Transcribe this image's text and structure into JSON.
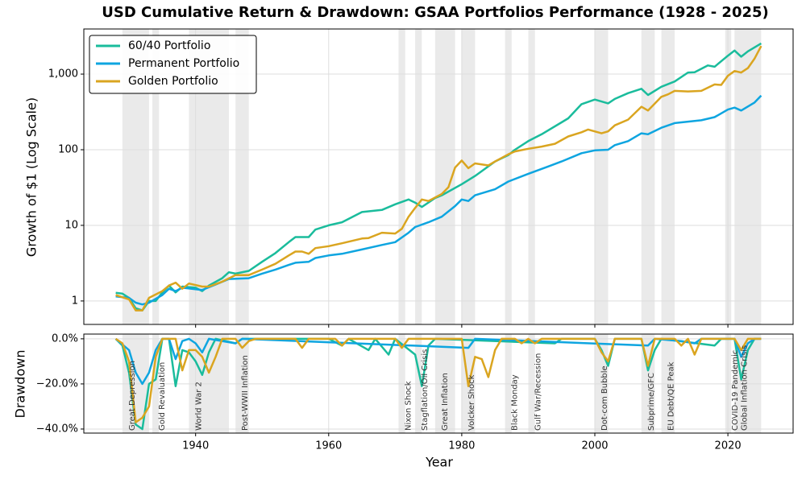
{
  "chart_data": [
    {
      "type": "line",
      "title": "USD Cumulative Return & Drawdown: GSAA Portfolios Performance (1928 - 2025)",
      "ylabel": "Growth of $1 (Log Scale)",
      "log_scale": true,
      "grid": true,
      "legend": "upper left",
      "ylim": [
        0.49,
        3950
      ],
      "yticks": [
        1,
        10,
        100,
        {
          "value": 1000,
          "label": "1,000"
        }
      ],
      "series": [
        {
          "name": "60/40 Portfolio",
          "color": "#1abc9c",
          "x": [
            1928,
            1929,
            1930,
            1931,
            1932,
            1933,
            1934,
            1935,
            1936,
            1937,
            1938,
            1940,
            1941,
            1942,
            1944,
            1945,
            1946,
            1948,
            1950,
            1952,
            1954,
            1955,
            1957,
            1958,
            1960,
            1962,
            1965,
            1968,
            1970,
            1972,
            1973,
            1974,
            1976,
            1977,
            1980,
            1982,
            1985,
            1987,
            1988,
            1990,
            1992,
            1995,
            1996,
            1998,
            2000,
            2002,
            2003,
            2005,
            2007,
            2008,
            2010,
            2012,
            2014,
            2015,
            2017,
            2018,
            2020,
            2021,
            2022,
            2023,
            2025
          ],
          "values": [
            1.28,
            1.25,
            1.1,
            0.8,
            0.75,
            1.0,
            1.0,
            1.3,
            1.6,
            1.3,
            1.55,
            1.5,
            1.35,
            1.6,
            2.0,
            2.4,
            2.3,
            2.5,
            3.3,
            4.3,
            6.0,
            7.0,
            7.0,
            8.8,
            10,
            11,
            15,
            16,
            19,
            22,
            20,
            17.5,
            23,
            25,
            35,
            45,
            70,
            85,
            100,
            130,
            160,
            230,
            260,
            400,
            460,
            410,
            470,
            560,
            640,
            530,
            680,
            800,
            1050,
            1060,
            1300,
            1250,
            1750,
            2050,
            1700,
            2000,
            2550
          ]
        },
        {
          "name": "Permanent Portfolio",
          "color": "#0ea5e0",
          "x": [
            1928,
            1930,
            1931,
            1932,
            1933,
            1935,
            1936,
            1937,
            1938,
            1941,
            1943,
            1945,
            1948,
            1950,
            1952,
            1954,
            1955,
            1957,
            1958,
            1960,
            1962,
            1965,
            1968,
            1970,
            1972,
            1973,
            1975,
            1977,
            1979,
            1980,
            1981,
            1982,
            1985,
            1987,
            1990,
            1993,
            1995,
            1998,
            2000,
            2002,
            2003,
            2005,
            2007,
            2008,
            2010,
            2012,
            2014,
            2016,
            2018,
            2020,
            2021,
            2022,
            2024,
            2025
          ],
          "values": [
            1.15,
            1.1,
            0.95,
            0.9,
            0.95,
            1.2,
            1.45,
            1.35,
            1.5,
            1.4,
            1.65,
            1.95,
            2.0,
            2.3,
            2.6,
            3.0,
            3.2,
            3.3,
            3.7,
            4.0,
            4.2,
            4.8,
            5.5,
            6.0,
            8.0,
            9.5,
            11,
            13,
            18,
            22,
            21,
            25,
            30,
            38,
            48,
            60,
            70,
            90,
            98,
            100,
            115,
            130,
            165,
            160,
            195,
            225,
            235,
            245,
            270,
            340,
            360,
            330,
            420,
            520
          ]
        },
        {
          "name": "Golden Portfolio",
          "color": "#daa520",
          "x": [
            1928,
            1930,
            1931,
            1932,
            1933,
            1935,
            1936,
            1937,
            1938,
            1939,
            1941,
            1942,
            1944,
            1946,
            1948,
            1950,
            1952,
            1954,
            1955,
            1956,
            1957,
            1958,
            1960,
            1962,
            1965,
            1966,
            1968,
            1970,
            1971,
            1972,
            1973,
            1974,
            1975,
            1977,
            1978,
            1979,
            1980,
            1981,
            1982,
            1984,
            1985,
            1987,
            1988,
            1990,
            1992,
            1994,
            1996,
            1998,
            1999,
            2001,
            2002,
            2003,
            2005,
            2007,
            2008,
            2010,
            2011,
            2012,
            2014,
            2016,
            2018,
            2019,
            2020,
            2021,
            2022,
            2023,
            2024,
            2025
          ],
          "values": [
            1.2,
            1.05,
            0.75,
            0.75,
            1.1,
            1.35,
            1.6,
            1.75,
            1.45,
            1.7,
            1.55,
            1.55,
            1.8,
            2.2,
            2.2,
            2.6,
            3.1,
            4.0,
            4.5,
            4.5,
            4.2,
            5.0,
            5.3,
            5.8,
            6.7,
            6.8,
            8,
            7.8,
            9,
            13,
            17,
            22,
            21,
            26,
            32,
            58,
            72,
            57,
            66,
            62,
            70,
            87,
            95,
            103,
            110,
            120,
            150,
            170,
            185,
            165,
            175,
            210,
            250,
            370,
            330,
            500,
            540,
            600,
            590,
            600,
            730,
            720,
            950,
            1100,
            1050,
            1200,
            1600,
            2350
          ]
        }
      ]
    },
    {
      "type": "line",
      "ylabel": "Drawdown",
      "xlabel": "Year",
      "grid": true,
      "xlim": [
        1923.2,
        2029.8
      ],
      "xticks": [
        1940,
        1960,
        1980,
        2000,
        2020
      ],
      "ylim": [
        -41.8,
        2.1
      ],
      "yticks": [
        {
          "value": 0,
          "label": "0.0%"
        },
        {
          "value": -20,
          "label": "−20.0%"
        },
        {
          "value": -40,
          "label": "−40.0%"
        }
      ],
      "shaded_periods": [
        {
          "label": "Great Depression",
          "start": 1929,
          "end": 1933
        },
        {
          "label": "Gold Revaluation",
          "start": 1933.5,
          "end": 1934.5
        },
        {
          "label": "World War 2",
          "start": 1939,
          "end": 1945
        },
        {
          "label": "Post-WWII Inflation",
          "start": 1946,
          "end": 1948
        },
        {
          "label": "Nixon Shock",
          "start": 1970.5,
          "end": 1971.5
        },
        {
          "label": "Stagflation/Oil Crisis",
          "start": 1973,
          "end": 1974
        },
        {
          "label": "Great Inflation",
          "start": 1976,
          "end": 1979
        },
        {
          "label": "Volcker Shock",
          "start": 1980,
          "end": 1982
        },
        {
          "label": "Black Monday",
          "start": 1986.5,
          "end": 1987.5
        },
        {
          "label": "Gulf War/Recession",
          "start": 1990,
          "end": 1991
        },
        {
          "label": "Dot-com Bubble",
          "start": 2000,
          "end": 2002
        },
        {
          "label": "Subprime/GFC",
          "start": 2007,
          "end": 2009
        },
        {
          "label": "EU Debt/QE Peak",
          "start": 2010,
          "end": 2012
        },
        {
          "label": "COVID-19 Pandemic",
          "start": 2019.6,
          "end": 2020.5
        },
        {
          "label": "Global Inflation Crisis",
          "start": 2021,
          "end": 2025
        }
      ],
      "series": [
        {
          "color": "#1abc9c",
          "x": [
            1928,
            1929,
            1930,
            1931,
            1932,
            1933,
            1934,
            1935,
            1936,
            1937,
            1938,
            1939,
            1940,
            1941,
            1942,
            1943,
            1946,
            1947,
            1960,
            1962,
            1963,
            1966,
            1967,
            1969,
            1970,
            1973,
            1974,
            1975,
            1976,
            1994,
            1995,
            2000,
            2001,
            2002,
            2003,
            2007,
            2008,
            2009,
            2010,
            2018,
            2019,
            2021,
            2022,
            2023,
            2024,
            2025
          ],
          "values": [
            0,
            -3,
            -15,
            -38,
            -40,
            -20,
            -18,
            0,
            0,
            -21,
            -5,
            -6,
            -10,
            -16,
            -6,
            0,
            -2,
            0,
            0,
            -3,
            0,
            -5,
            0,
            -7,
            0,
            -7,
            -21,
            -3,
            0,
            -2,
            0,
            0,
            -5,
            -12,
            0,
            0,
            -14,
            -5,
            0,
            -3,
            0,
            0,
            -18,
            -5,
            0,
            0
          ]
        },
        {
          "color": "#0ea5e0",
          "x": [
            1928,
            1930,
            1931,
            1932,
            1933,
            1934,
            1935,
            1936,
            1937,
            1938,
            1939,
            1940,
            1941,
            1942,
            1946,
            1947,
            1981,
            1982,
            2008,
            2009,
            2013,
            2015,
            2016,
            2021,
            2022,
            2023,
            2024,
            2025
          ],
          "values": [
            0,
            -5,
            -15,
            -20,
            -15,
            -5,
            0,
            0,
            -9,
            -1,
            0,
            -2,
            -6,
            0,
            -2,
            0,
            -4,
            0,
            -3,
            0,
            -1,
            -2,
            0,
            0,
            -8,
            -2,
            0,
            0
          ]
        },
        {
          "color": "#daa520",
          "x": [
            1928,
            1929,
            1930,
            1931,
            1932,
            1933,
            1934,
            1935,
            1937,
            1938,
            1939,
            1940,
            1941,
            1942,
            1943,
            1944,
            1946,
            1947,
            1948,
            1949,
            1955,
            1956,
            1957,
            1961,
            1962,
            1963,
            1970,
            1971,
            1972,
            1980,
            1981,
            1982,
            1983,
            1984,
            1985,
            1986,
            1988,
            1989,
            1990,
            1991,
            1992,
            2000,
            2001,
            2002,
            2003,
            2007,
            2008,
            2009,
            2012,
            2013,
            2014,
            2015,
            2016,
            2021,
            2022,
            2023,
            2025
          ],
          "values": [
            0,
            -2,
            -10,
            -37,
            -35,
            -30,
            -8,
            0,
            0,
            -14,
            -5,
            -5,
            -8,
            -15,
            -8,
            0,
            0,
            -4,
            -1,
            0,
            0,
            -4,
            0,
            0,
            -3,
            0,
            0,
            -4,
            0,
            0,
            -21,
            -8,
            -9,
            -17,
            -5,
            0,
            0,
            -2,
            0,
            -2,
            0,
            0,
            -6,
            -10,
            0,
            0,
            -12,
            0,
            0,
            -3,
            0,
            -7,
            0,
            0,
            -5,
            0,
            0
          ]
        }
      ]
    }
  ]
}
